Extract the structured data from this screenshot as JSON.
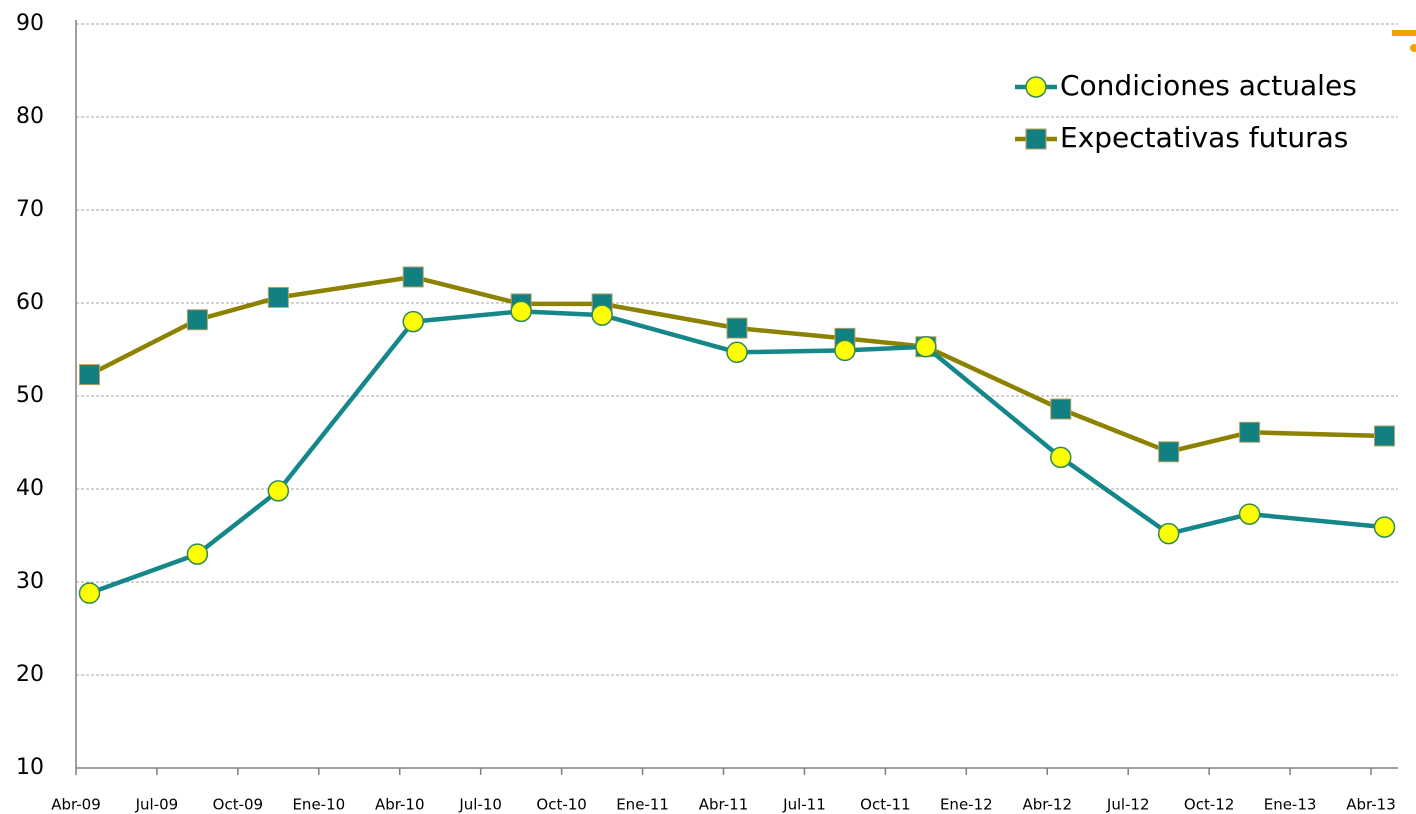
{
  "chart_data": {
    "type": "line",
    "x": [
      "2009-04",
      "2009-08",
      "2009-11",
      "2010-04",
      "2010-08",
      "2010-11",
      "2011-04",
      "2011-08",
      "2011-11",
      "2012-04",
      "2012-08",
      "2012-11",
      "2013-04"
    ],
    "series": [
      {
        "name": "Condiciones actuales",
        "color": "#15878a",
        "marker": "circle",
        "marker_color": "#ffff00",
        "values": [
          28.8,
          33.0,
          39.8,
          58.0,
          59.1,
          58.7,
          54.7,
          54.9,
          55.3,
          43.4,
          35.2,
          37.3,
          35.9
        ]
      },
      {
        "name": "Expectativas futuras",
        "color": "#8c8200",
        "marker": "square",
        "marker_color": "#127f80",
        "values": [
          52.3,
          58.2,
          60.6,
          62.8,
          59.9,
          59.9,
          57.3,
          56.2,
          55.3,
          48.6,
          44.0,
          46.1,
          45.7
        ]
      }
    ],
    "xlim": [
      "2009-04",
      "2013-05"
    ],
    "xticks": [
      {
        "value": "2009-04",
        "label": "Abr-09"
      },
      {
        "value": "2009-07",
        "label": "Jul-09"
      },
      {
        "value": "2009-10",
        "label": "Oct-09"
      },
      {
        "value": "2010-01",
        "label": "Ene-10"
      },
      {
        "value": "2010-04",
        "label": "Abr-10"
      },
      {
        "value": "2010-07",
        "label": "Jul-10"
      },
      {
        "value": "2010-10",
        "label": "Oct-10"
      },
      {
        "value": "2011-01",
        "label": "Ene-11"
      },
      {
        "value": "2011-04",
        "label": "Abr-11"
      },
      {
        "value": "2011-07",
        "label": "Jul-11"
      },
      {
        "value": "2011-10",
        "label": "Oct-11"
      },
      {
        "value": "2012-01",
        "label": "Ene-12"
      },
      {
        "value": "2012-04",
        "label": "Abr-12"
      },
      {
        "value": "2012-07",
        "label": "Jul-12"
      },
      {
        "value": "2012-10",
        "label": "Oct-12"
      },
      {
        "value": "2013-01",
        "label": "Ene-13"
      },
      {
        "value": "2013-04",
        "label": "Abr-13"
      }
    ],
    "ylim": [
      10,
      90
    ],
    "yticks": [
      10,
      20,
      30,
      40,
      50,
      60,
      70,
      80,
      90
    ],
    "grid": true,
    "legend": "top-right"
  }
}
